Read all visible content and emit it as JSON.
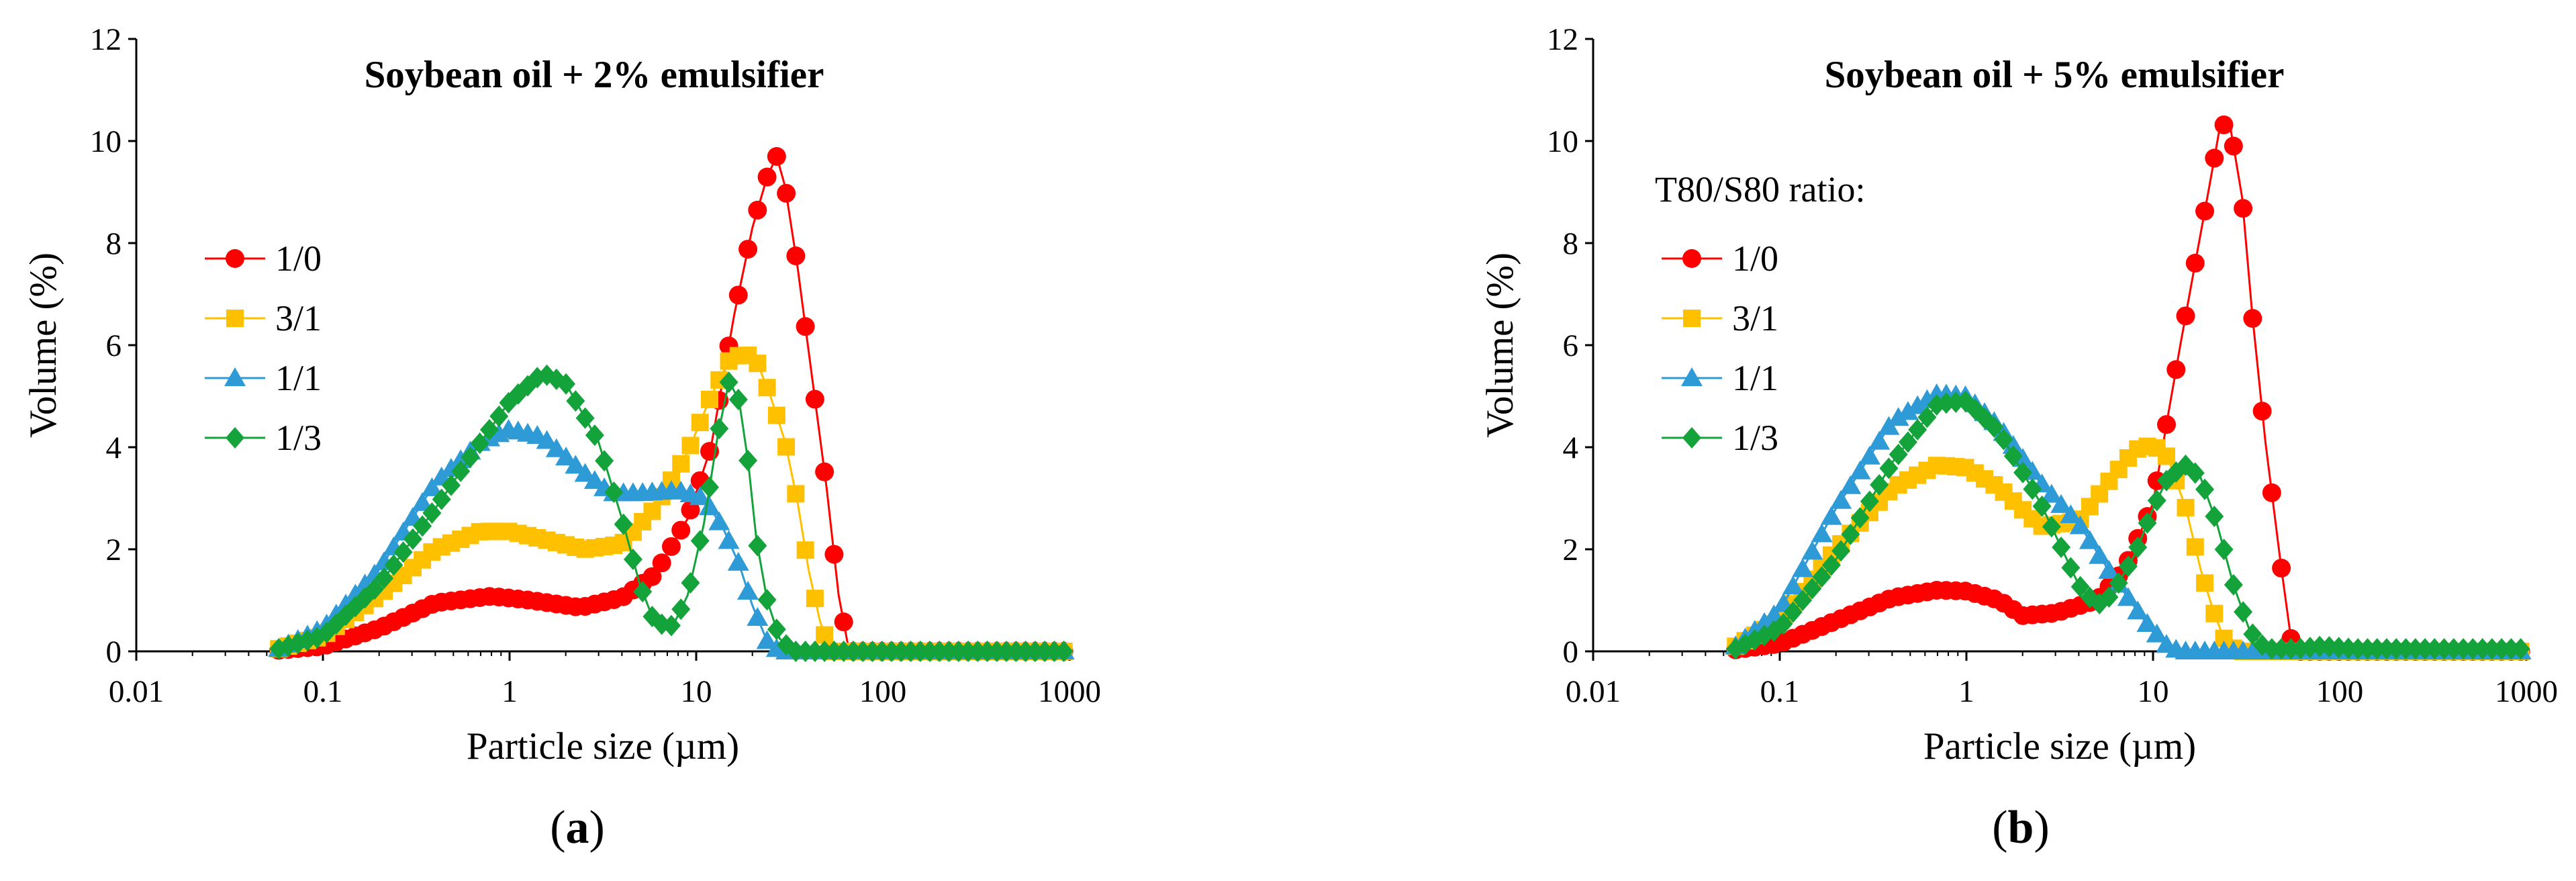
{
  "colors": {
    "1/0": "#ff0000",
    "3/1": "#ffc000",
    "1/1": "#2e9bd6",
    "1/3": "#14a33a",
    "axis": "#000000"
  },
  "chart_data": [
    {
      "panel": "a",
      "type": "scatter",
      "title": "Soybean oil + 2% emulsifier",
      "xlabel": "Particle size (µm)",
      "ylabel": "Volume (%)",
      "sublabel_pre": "(",
      "sublabel_letter": "a",
      "sublabel_post": ")",
      "x_scale": "log",
      "xlim": [
        0.01,
        1000
      ],
      "ylim": [
        0,
        12
      ],
      "x_ticks": [
        0.01,
        0.1,
        1,
        10,
        100,
        1000
      ],
      "x_tick_labels": [
        "0.01",
        "0.1",
        "1",
        "10",
        "100",
        "1000"
      ],
      "y_ticks": [
        0,
        2,
        4,
        6,
        8,
        10,
        12
      ],
      "y_tick_labels": [
        "0",
        "2",
        "4",
        "6",
        "8",
        "10",
        "12"
      ],
      "grid": false,
      "legend_title": "",
      "legend_position": "left",
      "series": [
        {
          "name": "1/0",
          "marker": "circle",
          "color": "#ff0000",
          "points": [
            [
              0.058,
              0.02
            ],
            [
              0.1,
              0.1
            ],
            [
              0.2,
              0.45
            ],
            [
              0.4,
              0.95
            ],
            [
              0.8,
              1.08
            ],
            [
              1.3,
              1.0
            ],
            [
              2.4,
              0.86
            ],
            [
              4,
              1.05
            ],
            [
              6,
              1.5
            ],
            [
              9,
              2.6
            ],
            [
              12,
              4.0
            ],
            [
              16,
              6.6
            ],
            [
              20,
              8.3
            ],
            [
              24,
              9.3
            ],
            [
              27,
              9.7
            ],
            [
              30,
              9.1
            ],
            [
              35,
              7.5
            ],
            [
              42,
              5.3
            ],
            [
              50,
              3.2
            ],
            [
              58,
              1.1
            ],
            [
              66,
              0.0
            ],
            [
              120,
              0.0
            ],
            [
              1000,
              0.0
            ]
          ]
        },
        {
          "name": "3/1",
          "marker": "square",
          "color": "#ffc000",
          "points": [
            [
              0.058,
              0.05
            ],
            [
              0.1,
              0.3
            ],
            [
              0.2,
              1.1
            ],
            [
              0.4,
              2.0
            ],
            [
              0.7,
              2.35
            ],
            [
              1.0,
              2.35
            ],
            [
              1.5,
              2.2
            ],
            [
              2.5,
              2.0
            ],
            [
              4,
              2.1
            ],
            [
              6,
              2.8
            ],
            [
              9,
              3.9
            ],
            [
              12,
              5.0
            ],
            [
              15,
              5.7
            ],
            [
              18,
              5.85
            ],
            [
              21,
              5.7
            ],
            [
              25,
              5.0
            ],
            [
              30,
              4.1
            ],
            [
              35,
              2.9
            ],
            [
              40,
              1.6
            ],
            [
              46,
              0.6
            ],
            [
              52,
              0.0
            ],
            [
              120,
              0.0
            ],
            [
              1000,
              0.0
            ]
          ]
        },
        {
          "name": "1/1",
          "marker": "triangle",
          "color": "#2e9bd6",
          "points": [
            [
              0.058,
              0.05
            ],
            [
              0.1,
              0.45
            ],
            [
              0.2,
              1.6
            ],
            [
              0.4,
              3.3
            ],
            [
              0.7,
              4.1
            ],
            [
              1.0,
              4.35
            ],
            [
              1.5,
              4.2
            ],
            [
              2.5,
              3.5
            ],
            [
              3.5,
              3.1
            ],
            [
              5,
              3.1
            ],
            [
              8,
              3.15
            ],
            [
              11,
              3.0
            ],
            [
              14,
              2.4
            ],
            [
              17,
              1.7
            ],
            [
              20,
              0.9
            ],
            [
              24,
              0.2
            ],
            [
              28,
              0.0
            ],
            [
              120,
              0.0
            ],
            [
              1000,
              0.0
            ]
          ]
        },
        {
          "name": "1/3",
          "marker": "diamond",
          "color": "#14a33a",
          "points": [
            [
              0.058,
              0.05
            ],
            [
              0.1,
              0.3
            ],
            [
              0.2,
              1.3
            ],
            [
              0.4,
              2.8
            ],
            [
              0.7,
              4.1
            ],
            [
              1.0,
              4.9
            ],
            [
              1.5,
              5.45
            ],
            [
              2,
              5.25
            ],
            [
              3,
              4.1
            ],
            [
              4,
              2.6
            ],
            [
              5,
              1.3
            ],
            [
              6,
              0.55
            ],
            [
              7.5,
              0.5
            ],
            [
              9,
              1.1
            ],
            [
              11,
              2.5
            ],
            [
              13,
              4.2
            ],
            [
              15,
              5.3
            ],
            [
              17,
              4.9
            ],
            [
              19,
              3.7
            ],
            [
              21,
              2.2
            ],
            [
              24,
              1.0
            ],
            [
              28,
              0.25
            ],
            [
              33,
              0.0
            ],
            [
              120,
              0.0
            ],
            [
              1000,
              0.0
            ]
          ]
        }
      ]
    },
    {
      "panel": "b",
      "type": "scatter",
      "title": "Soybean oil + 5% emulsifier",
      "xlabel": "Particle size (µm)",
      "ylabel": "Volume (%)",
      "sublabel_pre": "(",
      "sublabel_letter": "b",
      "sublabel_post": ")",
      "x_scale": "log",
      "xlim": [
        0.01,
        1000
      ],
      "ylim": [
        0,
        12
      ],
      "x_ticks": [
        0.01,
        0.1,
        1,
        10,
        100,
        1000
      ],
      "x_tick_labels": [
        "0.01",
        "0.1",
        "1",
        "10",
        "100",
        "1000"
      ],
      "y_ticks": [
        0,
        2,
        4,
        6,
        8,
        10,
        12
      ],
      "y_tick_labels": [
        "0",
        "2",
        "4",
        "6",
        "8",
        "10",
        "12"
      ],
      "grid": false,
      "legend_title": "T80/S80 ratio:",
      "legend_position": "left",
      "series": [
        {
          "name": "1/0",
          "marker": "circle",
          "color": "#ff0000",
          "points": [
            [
              0.058,
              0.03
            ],
            [
              0.1,
              0.15
            ],
            [
              0.2,
              0.6
            ],
            [
              0.4,
              1.05
            ],
            [
              0.7,
              1.2
            ],
            [
              1.0,
              1.18
            ],
            [
              1.5,
              1.0
            ],
            [
              2,
              0.7
            ],
            [
              3,
              0.75
            ],
            [
              5,
              1.0
            ],
            [
              7,
              1.6
            ],
            [
              10,
              2.9
            ],
            [
              12,
              4.6
            ],
            [
              14,
              6.0
            ],
            [
              17,
              7.7
            ],
            [
              20,
              9.1
            ],
            [
              23,
              10.35
            ],
            [
              26,
              10.25
            ],
            [
              30,
              8.9
            ],
            [
              34,
              6.6
            ],
            [
              40,
              4.1
            ],
            [
              48,
              1.8
            ],
            [
              56,
              0.0
            ],
            [
              120,
              0.0
            ],
            [
              1000,
              0.0
            ]
          ]
        },
        {
          "name": "3/1",
          "marker": "square",
          "color": "#ffc000",
          "points": [
            [
              0.058,
              0.1
            ],
            [
              0.1,
              0.6
            ],
            [
              0.2,
              2.0
            ],
            [
              0.4,
              3.2
            ],
            [
              0.7,
              3.65
            ],
            [
              1.0,
              3.6
            ],
            [
              1.5,
              3.2
            ],
            [
              2.5,
              2.45
            ],
            [
              4,
              2.55
            ],
            [
              6,
              3.4
            ],
            [
              8,
              3.95
            ],
            [
              10,
              4.05
            ],
            [
              12,
              3.8
            ],
            [
              15,
              2.8
            ],
            [
              18,
              1.6
            ],
            [
              21,
              0.8
            ],
            [
              24,
              0.25
            ],
            [
              28,
              0.0
            ],
            [
              120,
              0.0
            ],
            [
              1000,
              0.0
            ]
          ]
        },
        {
          "name": "1/1",
          "marker": "triangle",
          "color": "#2e9bd6",
          "points": [
            [
              0.058,
              0.1
            ],
            [
              0.1,
              0.8
            ],
            [
              0.2,
              2.8
            ],
            [
              0.4,
              4.5
            ],
            [
              0.7,
              5.05
            ],
            [
              1.0,
              5.0
            ],
            [
              1.5,
              4.4
            ],
            [
              2.5,
              3.3
            ],
            [
              4,
              2.5
            ],
            [
              6,
              1.5
            ],
            [
              9,
              0.6
            ],
            [
              12,
              0.1
            ],
            [
              14,
              0.0
            ],
            [
              120,
              0.0
            ],
            [
              1000,
              0.0
            ]
          ]
        },
        {
          "name": "1/3",
          "marker": "diamond",
          "color": "#14a33a",
          "points": [
            [
              0.058,
              0.05
            ],
            [
              0.1,
              0.45
            ],
            [
              0.2,
              1.8
            ],
            [
              0.4,
              3.7
            ],
            [
              0.7,
              4.85
            ],
            [
              1.0,
              4.9
            ],
            [
              1.5,
              4.3
            ],
            [
              2.5,
              2.9
            ],
            [
              4,
              1.3
            ],
            [
              5,
              0.9
            ],
            [
              6,
              1.1
            ],
            [
              8,
              1.9
            ],
            [
              10,
              2.8
            ],
            [
              12,
              3.4
            ],
            [
              15,
              3.65
            ],
            [
              18,
              3.4
            ],
            [
              22,
              2.5
            ],
            [
              27,
              1.3
            ],
            [
              33,
              0.4
            ],
            [
              40,
              0.05
            ],
            [
              60,
              0.05
            ],
            [
              80,
              0.1
            ],
            [
              120,
              0.05
            ],
            [
              1000,
              0.05
            ]
          ]
        }
      ]
    }
  ]
}
